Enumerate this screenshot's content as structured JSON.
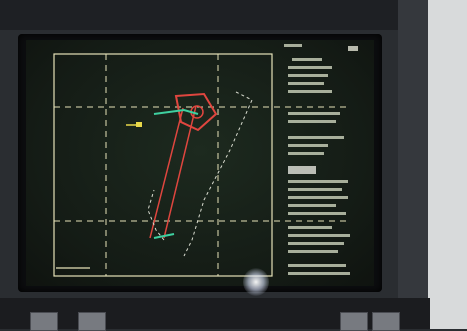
{
  "scene": {
    "description_free": true,
    "colors": {
      "case": "#2a2d31",
      "screen": "#141b15",
      "grid": "#e6e2b8",
      "track_red": "#e0463f",
      "marker_green": "#3fd0a0",
      "marker_yellow": "#e8d84a",
      "text": "#d9e0c8"
    },
    "icons": [
      "target-marker-icon",
      "crosshair-icon",
      "aircraft-marker-icon"
    ]
  }
}
